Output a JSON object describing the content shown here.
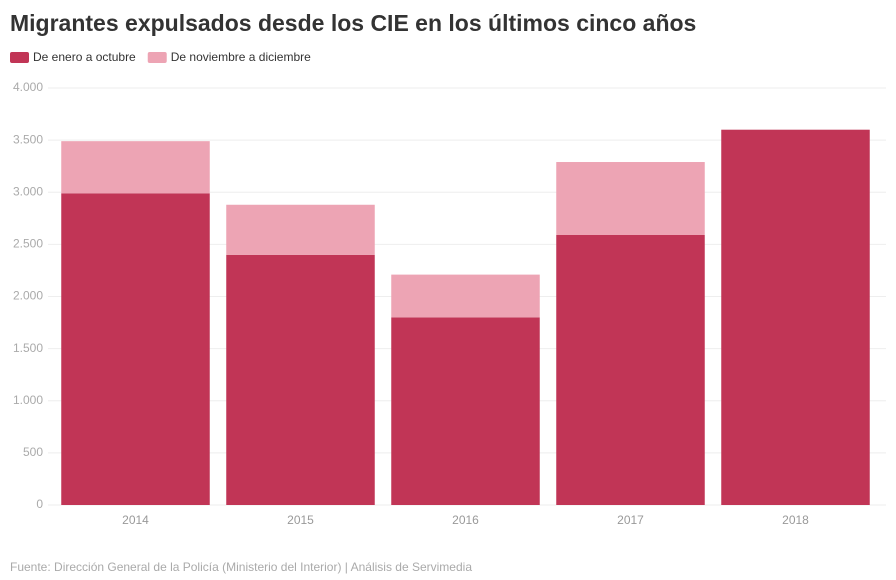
{
  "chart_data": {
    "type": "stacked_bar",
    "title": "Migrantes expulsados desde los CIE en los últimos cinco años",
    "categories": [
      "2014",
      "2015",
      "2016",
      "2017",
      "2018"
    ],
    "series": [
      {
        "name": "De enero a octubre",
        "color": "#c13556",
        "values": [
          2990,
          2400,
          1800,
          2590,
          3600
        ]
      },
      {
        "name": "De noviembre a diciembre",
        "color": "#eda4b4",
        "values": [
          500,
          480,
          410,
          700,
          0
        ]
      }
    ],
    "ylim": [
      0,
      4000
    ],
    "yticks": [
      0,
      500,
      {
        "value": 1000,
        "label": "1.000"
      },
      {
        "value": 1500,
        "label": "1.500"
      },
      {
        "value": 2000,
        "label": "2.000"
      },
      {
        "value": 2500,
        "label": "2.500"
      },
      {
        "value": 3000,
        "label": "3.000"
      },
      {
        "value": 3500,
        "label": "3.500"
      },
      {
        "value": 4000,
        "label": "4.000"
      }
    ],
    "grid": true,
    "source": "Fuente: Dirección General de la Policía (Ministerio del Interior) | Análisis de Servimedia"
  }
}
